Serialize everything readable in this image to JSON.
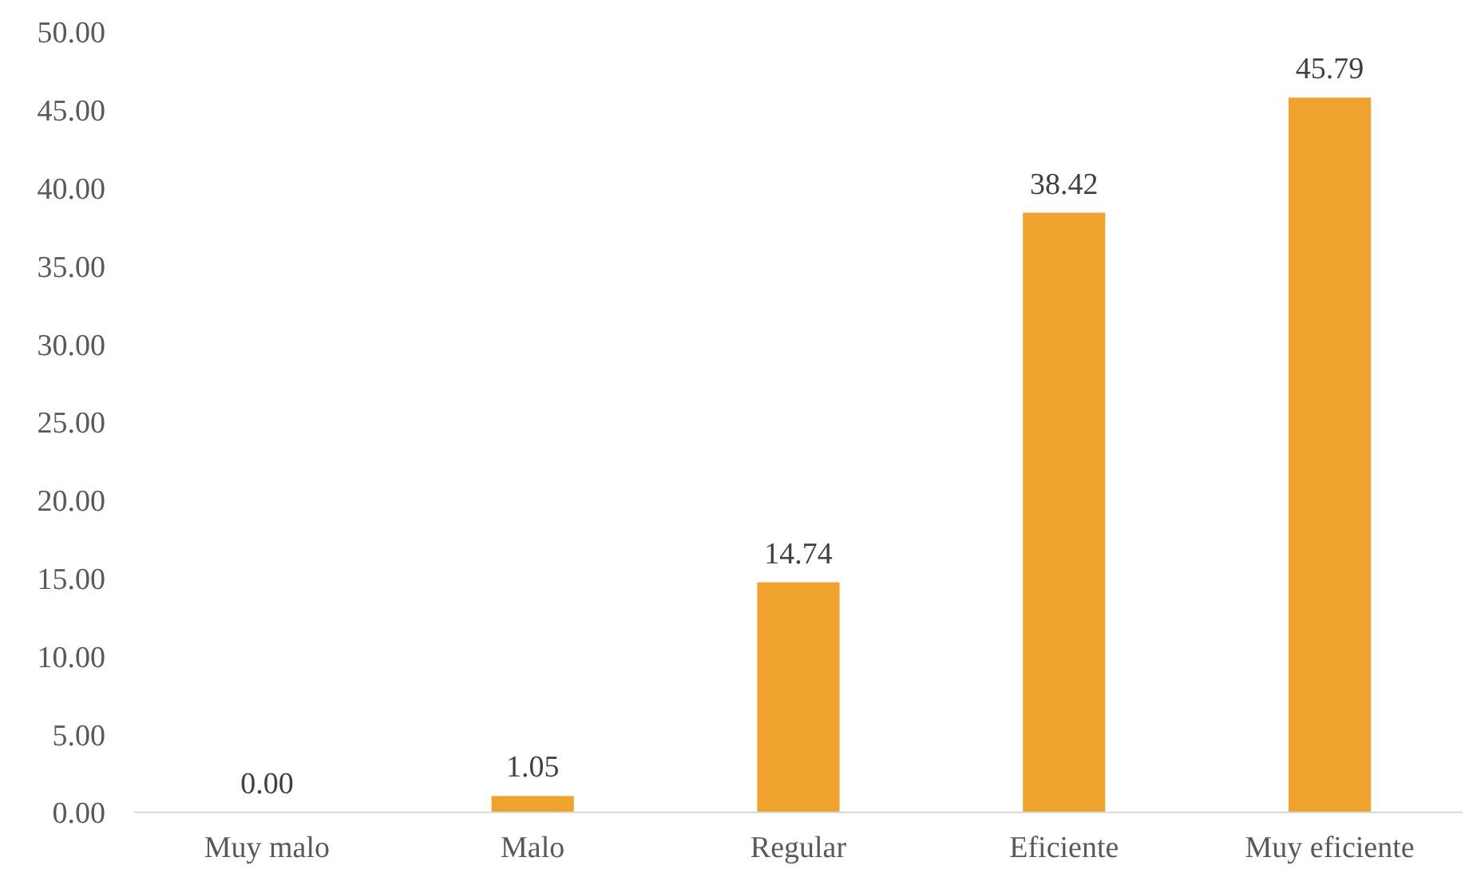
{
  "chart_data": {
    "type": "bar",
    "categories": [
      "Muy malo",
      "Malo",
      "Regular",
      "Eficiente",
      "Muy eficiente"
    ],
    "values": [
      0,
      1.05,
      14.74,
      38.42,
      45.79
    ],
    "value_labels": [
      "0.00",
      "1.05",
      "14.74",
      "38.42",
      "45.79"
    ],
    "color": "#f0a22e",
    "ylim": [
      0,
      50
    ],
    "yticks": [
      {
        "value": 0,
        "label": "0.00"
      },
      {
        "value": 5,
        "label": "5.00"
      },
      {
        "value": 10,
        "label": "10.00"
      },
      {
        "value": 15,
        "label": "15.00"
      },
      {
        "value": 20,
        "label": "20.00"
      },
      {
        "value": 25,
        "label": "25.00"
      },
      {
        "value": 30,
        "label": "30.00"
      },
      {
        "value": 35,
        "label": "35.00"
      },
      {
        "value": 40,
        "label": "40.00"
      },
      {
        "value": 45,
        "label": "45.00"
      },
      {
        "value": 50,
        "label": "50.00"
      }
    ],
    "grid": false
  }
}
